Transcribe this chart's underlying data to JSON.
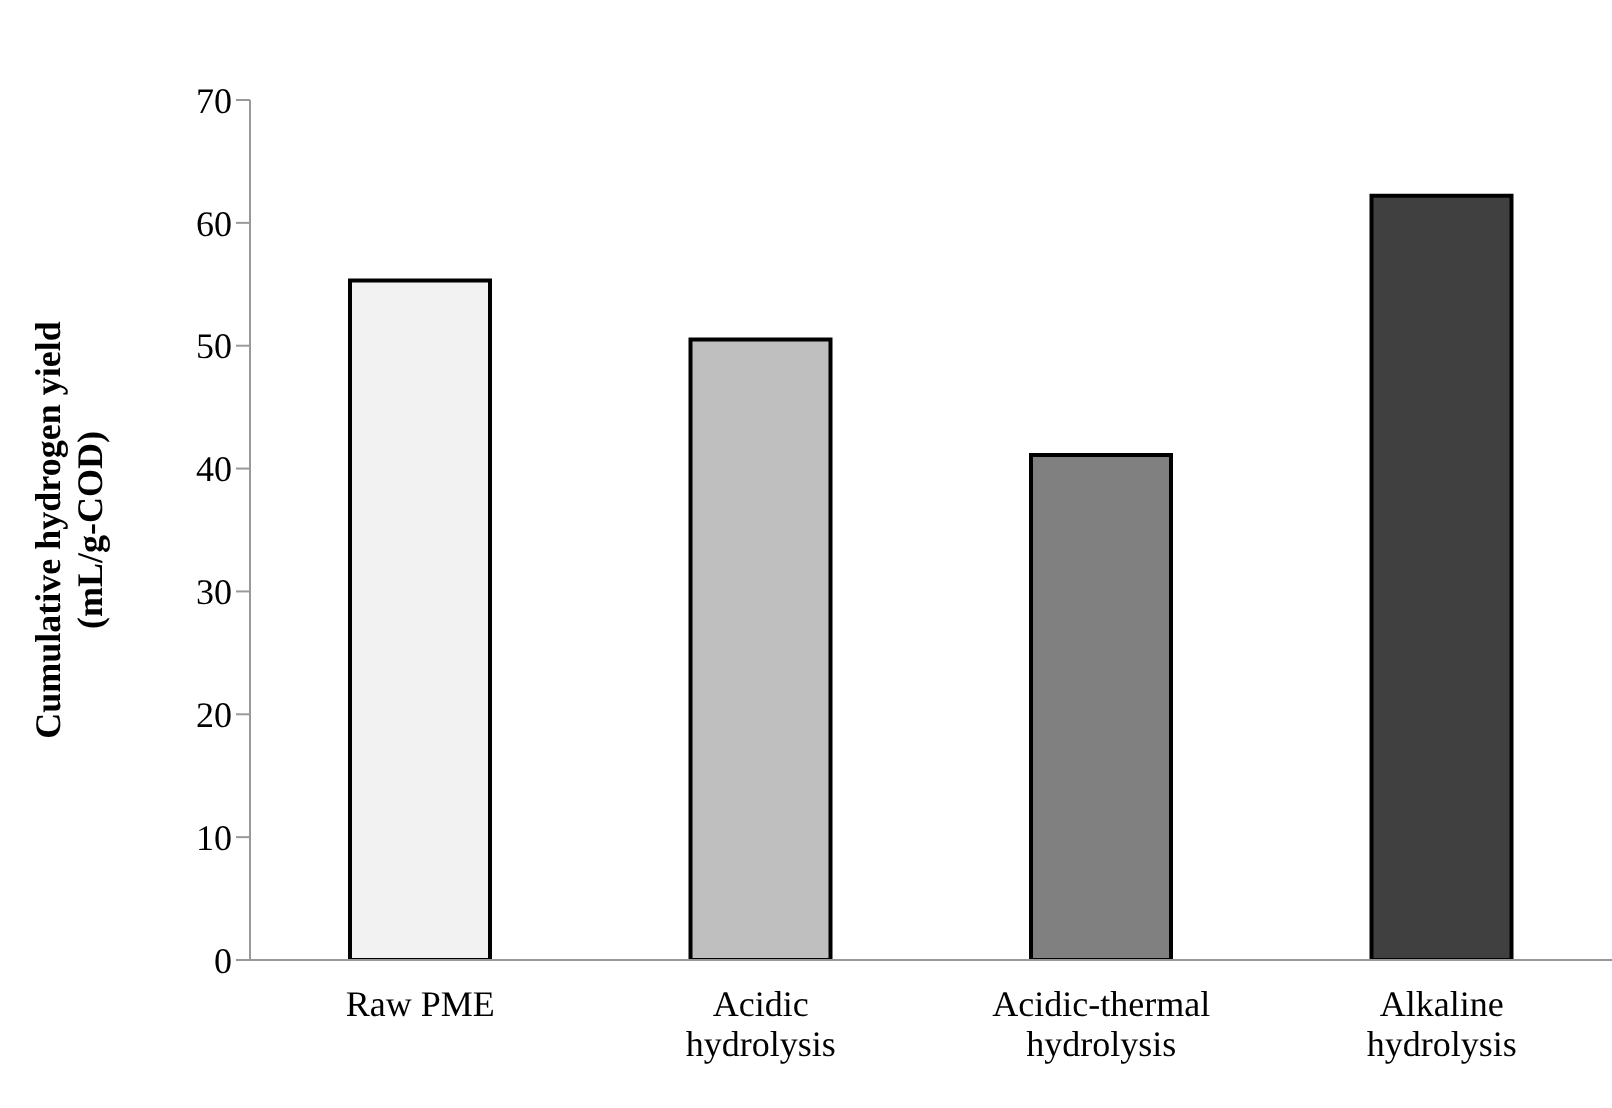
{
  "chart_data": {
    "type": "bar",
    "categories": [
      "Raw PME",
      "Acidic\nhydrolysis",
      "Acidic-thermal\nhydrolysis",
      "Alkaline\nhydrolysis"
    ],
    "values": [
      55.3,
      50.5,
      41.1,
      62.2
    ],
    "colors": [
      "#f2f2f2",
      "#bfbfbf",
      "#808080",
      "#404040"
    ],
    "ylabel": "Cumulative hydrogen yield\n(mL/g-COD)",
    "ylim": [
      0,
      70
    ],
    "yticks": [
      0,
      10,
      20,
      30,
      40,
      50,
      60,
      70
    ],
    "grid": false
  }
}
